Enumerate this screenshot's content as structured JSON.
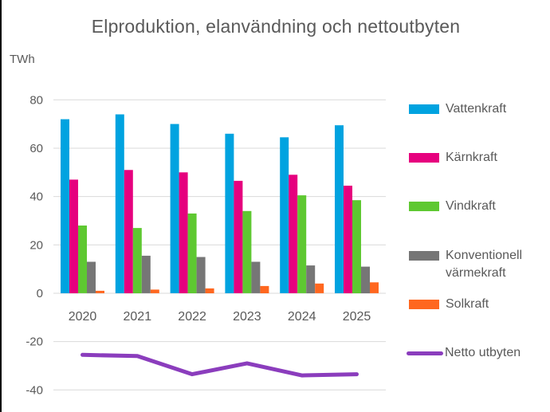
{
  "chart_data": {
    "type": "combo-bar-line",
    "title": "Elproduktion, elanvändning och nettoutbyten",
    "ylabel": "TWh",
    "categories": [
      "2020",
      "2021",
      "2022",
      "2023",
      "2024",
      "2025"
    ],
    "series": [
      {
        "name": "Vattenkraft",
        "type": "bar",
        "color": "#00A3E0",
        "values": [
          72,
          74,
          70,
          66,
          64.5,
          69.5
        ]
      },
      {
        "name": "Kärnkraft",
        "type": "bar",
        "color": "#E6007E",
        "values": [
          47,
          51,
          50,
          46.5,
          49,
          44.5
        ]
      },
      {
        "name": "Vindkraft",
        "type": "bar",
        "color": "#5EC831",
        "values": [
          28,
          27,
          33,
          34,
          40.5,
          38.5
        ]
      },
      {
        "name": "Konventionell värmekraft",
        "type": "bar",
        "color": "#767676",
        "values": [
          13,
          15.5,
          15,
          13,
          11.5,
          11
        ]
      },
      {
        "name": "Solkraft",
        "type": "bar",
        "color": "#FF671F",
        "values": [
          1,
          1.5,
          2,
          3,
          4,
          4.5
        ]
      },
      {
        "name": "Netto utbyten",
        "type": "line",
        "color": "#8B3DBD",
        "values": [
          -25.5,
          -26,
          -33.5,
          -29,
          -34,
          -33.5
        ]
      }
    ],
    "ylim": [
      -40,
      80
    ],
    "yticks": [
      80,
      60,
      40,
      20,
      0,
      -20,
      -40
    ],
    "grid": true,
    "legend_position": "right",
    "theme": {
      "grid_color": "#D9D9D9",
      "text_color": "#595959",
      "background": "#FFFFFF"
    }
  }
}
